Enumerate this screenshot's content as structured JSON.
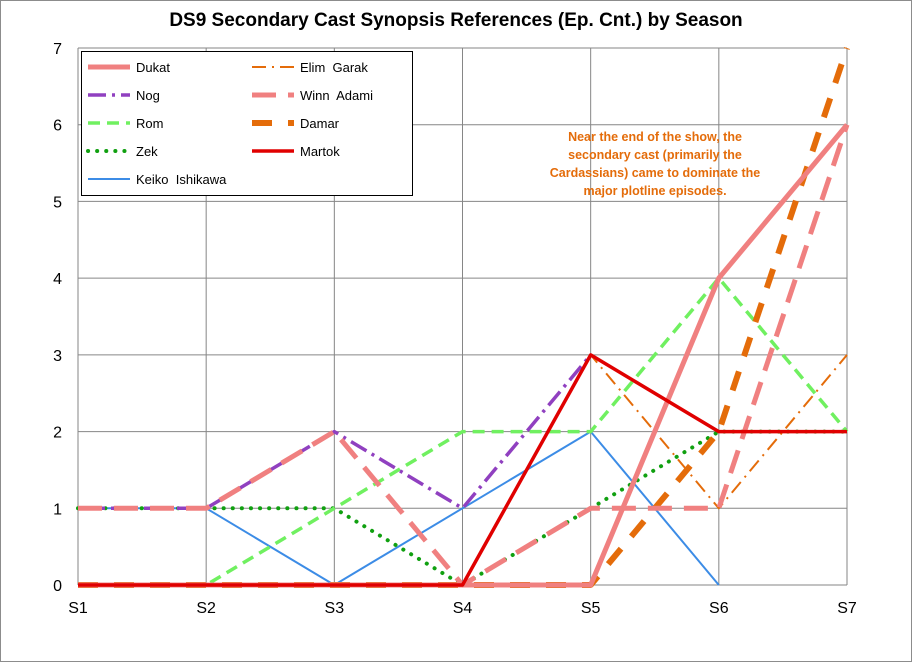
{
  "chart_data": {
    "type": "line",
    "title": "DS9 Secondary  Cast Synopsis References (Ep. Cnt.) by Season",
    "xlabel": "",
    "ylabel": "",
    "categories": [
      "S1",
      "S2",
      "S3",
      "S4",
      "S5",
      "S6",
      "S7"
    ],
    "ylim": [
      0,
      7
    ],
    "yticks": [
      0,
      1,
      2,
      3,
      4,
      5,
      6,
      7
    ],
    "grid": true,
    "legend_position": "top-left",
    "annotation": "Near the end of the show, the secondary cast  (primarily the Cardassians) came to dominate the major plotline episodes.",
    "series": [
      {
        "name": "Dukat",
        "values": [
          0,
          0,
          0,
          0,
          0,
          4,
          6
        ],
        "color": "#f08080",
        "dash": "solid"
      },
      {
        "name": "Nog",
        "values": [
          1,
          1,
          2,
          1,
          3,
          null,
          null
        ],
        "color": "#9040c0",
        "dash": "dashdot"
      },
      {
        "name": "Rom",
        "values": [
          0,
          0,
          1,
          2,
          2,
          4,
          2
        ],
        "color": "#70f060",
        "dash": "dash"
      },
      {
        "name": "Zek",
        "values": [
          1,
          1,
          1,
          0,
          1,
          2,
          2
        ],
        "color": "#10a010",
        "dash": "dot"
      },
      {
        "name": "Keiko  Ishikawa",
        "values": [
          1,
          1,
          0,
          1,
          2,
          0,
          null
        ],
        "color": "#3c8ce6",
        "dash": "solid"
      },
      {
        "name": "Elim  Garak",
        "values": [
          0,
          0,
          0,
          0,
          3,
          1,
          3
        ],
        "color": "#e46c0a",
        "dash": "longdashdot"
      },
      {
        "name": "Winn  Adami",
        "values": [
          1,
          1,
          2,
          0,
          1,
          1,
          6
        ],
        "color": "#f08080",
        "dash": "longdash"
      },
      {
        "name": "Damar",
        "values": [
          0,
          0,
          0,
          0,
          0,
          2,
          7
        ],
        "color": "#e46c0a",
        "dash": "longdash"
      },
      {
        "name": "Martok",
        "values": [
          0,
          0,
          0,
          0,
          3,
          2,
          2
        ],
        "color": "#e00000",
        "dash": "solid"
      }
    ]
  }
}
